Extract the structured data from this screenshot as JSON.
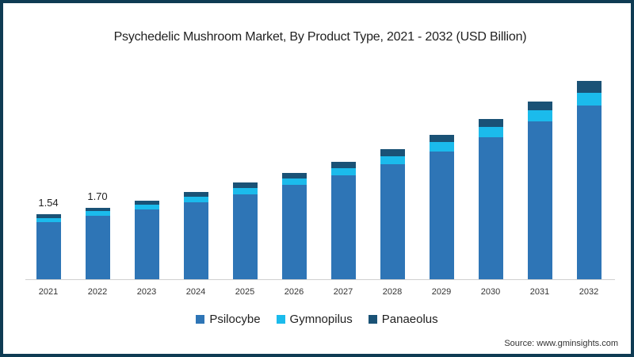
{
  "title": "Psychedelic Mushroom Market, By Product Type, 2021 - 2032 (USD Billion)",
  "source": "Source: www.gminsights.com",
  "colors": {
    "Psilocybe": "#2e75b6",
    "Gymnopilus": "#1bbbec",
    "Panaeolus": "#1a5276",
    "frame": "#0e3b53"
  },
  "chart_data": {
    "type": "bar",
    "stacked": true,
    "title": "Psychedelic Mushroom Market, By Product Type, 2021 - 2032 (USD Billion)",
    "xlabel": "",
    "ylabel": "USD Billion",
    "categories": [
      "2021",
      "2022",
      "2023",
      "2024",
      "2025",
      "2026",
      "2027",
      "2028",
      "2029",
      "2030",
      "2031",
      "2032"
    ],
    "series": [
      {
        "name": "Psilocybe",
        "values": [
          1.35,
          1.5,
          1.65,
          1.82,
          2.02,
          2.23,
          2.46,
          2.72,
          3.03,
          3.37,
          3.74,
          4.12
        ]
      },
      {
        "name": "Gymnopilus",
        "values": [
          0.1,
          0.11,
          0.12,
          0.13,
          0.15,
          0.16,
          0.18,
          0.2,
          0.22,
          0.24,
          0.27,
          0.29
        ]
      },
      {
        "name": "Panaeolus",
        "values": [
          0.09,
          0.09,
          0.1,
          0.11,
          0.12,
          0.13,
          0.14,
          0.16,
          0.17,
          0.19,
          0.2,
          0.29
        ]
      }
    ],
    "totals": [
      1.54,
      1.7,
      1.87,
      2.06,
      2.29,
      2.52,
      2.78,
      3.08,
      3.42,
      3.8,
      4.21,
      4.7
    ],
    "data_labels": {
      "2021": "1.54",
      "2022": "1.70"
    },
    "legend": [
      "Psilocybe",
      "Gymnopilus",
      "Panaeolus"
    ],
    "legend_position": "bottom",
    "grid": false,
    "ylim": [
      0,
      5.1
    ]
  }
}
